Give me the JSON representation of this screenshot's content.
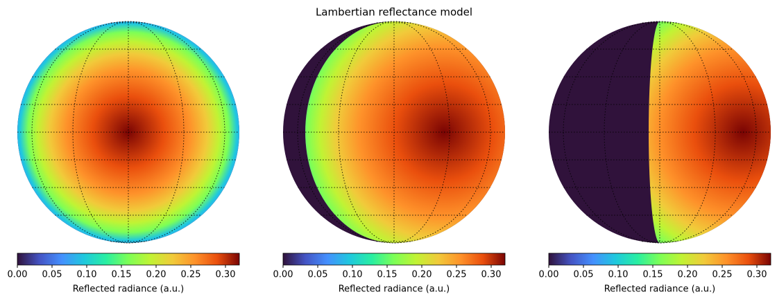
{
  "title": "Lambertian reflectance model",
  "chart_data": [
    {
      "type": "sphere-map",
      "cmap": "turbo",
      "colorbar_label": "Reflected radiance (a.u.)",
      "clim": [
        0,
        0.32
      ],
      "cticks": [
        {
          "value": 0,
          "label": "0.00"
        },
        0.05,
        {
          "value": 0.1,
          "label": "0.10"
        },
        0.15,
        {
          "value": 0.2,
          "label": "0.20"
        },
        0.25,
        {
          "value": 0.3,
          "label": "0.30"
        }
      ]
    },
    {
      "type": "sphere-map",
      "cmap": "turbo",
      "colorbar_label": "Reflected radiance (a.u.)",
      "clim": [
        0,
        0.32
      ],
      "cticks": [
        {
          "value": 0,
          "label": "0.00"
        },
        0.05,
        {
          "value": 0.1,
          "label": "0.10"
        },
        0.15,
        {
          "value": 0.2,
          "label": "0.20"
        },
        0.25,
        {
          "value": 0.3,
          "label": "0.30"
        }
      ]
    },
    {
      "type": "sphere-map",
      "cmap": "turbo",
      "colorbar_label": "Reflected radiance (a.u.)",
      "clim": [
        0,
        0.32
      ],
      "cticks": [
        {
          "value": 0,
          "label": "0.00"
        },
        0.05,
        {
          "value": 0.1,
          "label": "0.10"
        },
        0.15,
        {
          "value": 0.2,
          "label": "0.20"
        },
        0.25,
        {
          "value": 0.3,
          "label": "0.30"
        }
      ]
    }
  ]
}
